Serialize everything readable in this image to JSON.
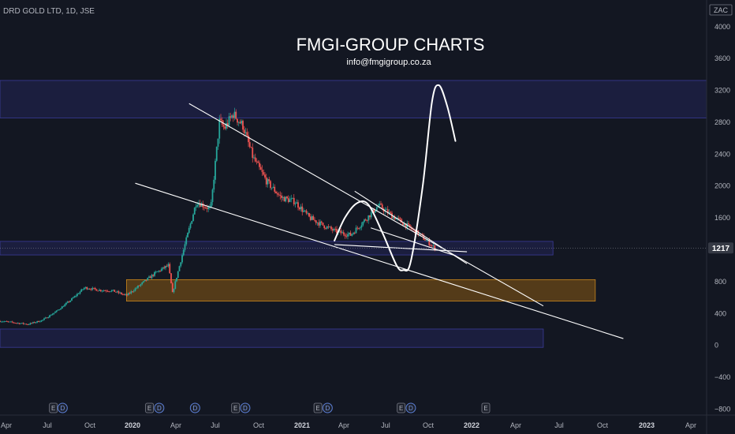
{
  "header": {
    "symbol": "DRD GOLD LTD, 1D, JSE",
    "currency": "ZAC"
  },
  "watermark": {
    "title": "FMGI-GROUP CHARTS",
    "email": "info@fmgigroup.co.za"
  },
  "last_price": "1217",
  "colors": {
    "background": "#131722",
    "up": "#26a69a",
    "down": "#ef5350",
    "zone_blue": "#2a2a72",
    "zone_orange": "#8a5a12",
    "line": "#ffffff",
    "price_badge": "#363a45"
  },
  "chart_data": {
    "type": "candlestick",
    "title": "",
    "x_ticks": [
      "Apr",
      "Jul",
      "Oct",
      "2020",
      "Apr",
      "Jul",
      "Oct",
      "2021",
      "Apr",
      "Jul",
      "Oct",
      "2022",
      "Apr",
      "Jul",
      "Oct",
      "2023",
      "Apr"
    ],
    "x_ticks_bold": [
      "2020",
      "2021",
      "2022",
      "2023"
    ],
    "y_ticks": [
      4000,
      3600,
      3200,
      2800,
      2400,
      2000,
      1600,
      1200,
      800,
      400,
      0,
      -400,
      -800
    ],
    "ylim": [
      -880,
      4330
    ],
    "xlim": [
      "2019-03-01",
      "2023-05-15"
    ],
    "grid": false,
    "price_path": [
      [
        "2019-03-01",
        300
      ],
      [
        "2019-04-01",
        280
      ],
      [
        "2019-05-01",
        260
      ],
      [
        "2019-06-01",
        310
      ],
      [
        "2019-07-01",
        420
      ],
      [
        "2019-08-01",
        560
      ],
      [
        "2019-09-01",
        720
      ],
      [
        "2019-10-01",
        690
      ],
      [
        "2019-11-01",
        680
      ],
      [
        "2019-12-01",
        620
      ],
      [
        "2020-01-01",
        760
      ],
      [
        "2020-02-01",
        900
      ],
      [
        "2020-03-01",
        1000
      ],
      [
        "2020-03-10",
        650
      ],
      [
        "2020-04-01",
        1150
      ],
      [
        "2020-05-01",
        1800
      ],
      [
        "2020-06-01",
        1700
      ],
      [
        "2020-06-20",
        2800
      ],
      [
        "2020-07-01",
        2720
      ],
      [
        "2020-07-20",
        2900
      ],
      [
        "2020-08-10",
        2750
      ],
      [
        "2020-09-01",
        2350
      ],
      [
        "2020-10-01",
        2050
      ],
      [
        "2020-11-01",
        1850
      ],
      [
        "2020-12-01",
        1800
      ],
      [
        "2021-01-01",
        1600
      ],
      [
        "2021-02-01",
        1500
      ],
      [
        "2021-03-01",
        1420
      ],
      [
        "2021-04-01",
        1380
      ],
      [
        "2021-05-01",
        1560
      ],
      [
        "2021-06-01",
        1750
      ],
      [
        "2021-07-01",
        1620
      ],
      [
        "2021-08-01",
        1500
      ],
      [
        "2021-09-01",
        1370
      ],
      [
        "2021-10-01",
        1217
      ]
    ],
    "zones": [
      {
        "label": "resistance",
        "y_low": 2850,
        "y_high": 3320,
        "x_start": "2019-03-01",
        "x_end": "2023-05-15",
        "color": "blue"
      },
      {
        "label": "current",
        "y_low": 1130,
        "y_high": 1300,
        "x_start": "2019-03-01",
        "x_end": "2022-06-15",
        "color": "blue"
      },
      {
        "label": "support",
        "y_low": 550,
        "y_high": 820,
        "x_start": "2019-12-01",
        "x_end": "2022-09-15",
        "color": "orange"
      },
      {
        "label": "lower",
        "y_low": -30,
        "y_high": 200,
        "x_start": "2019-03-01",
        "x_end": "2022-05-25",
        "color": "blue"
      }
    ],
    "trendlines": [
      {
        "from": [
          "2020-04-15",
          3030
        ],
        "to": [
          "2022-05-25",
          490
        ]
      },
      {
        "from": [
          "2019-12-20",
          2030
        ],
        "to": [
          "2022-11-15",
          80
        ]
      },
      {
        "from": [
          "2021-02-25",
          1260
        ],
        "to": [
          "2021-12-10",
          1170
        ]
      },
      {
        "from": [
          "2021-04-10",
          1930
        ],
        "to": [
          "2021-12-10",
          1020
        ]
      },
      {
        "from": [
          "2021-05-15",
          1470
        ],
        "to": [
          "2021-11-15",
          1120
        ]
      }
    ],
    "projection": [
      [
        "2021-02-25",
        1310
      ],
      [
        "2021-03-20",
        1600
      ],
      [
        "2021-04-15",
        1780
      ],
      [
        "2021-05-10",
        1760
      ],
      [
        "2021-06-10",
        1400
      ],
      [
        "2021-07-10",
        1000
      ],
      [
        "2021-07-25",
        940
      ],
      [
        "2021-08-10",
        1050
      ],
      [
        "2021-09-05",
        2000
      ],
      [
        "2021-09-25",
        3050
      ],
      [
        "2021-10-10",
        3260
      ],
      [
        "2021-10-28",
        3000
      ],
      [
        "2021-11-15",
        2560
      ]
    ],
    "events": [
      {
        "date": "2019-06-25",
        "type": "E"
      },
      {
        "date": "2019-07-15",
        "type": "D"
      },
      {
        "date": "2020-01-20",
        "type": "E"
      },
      {
        "date": "2020-02-10",
        "type": "D"
      },
      {
        "date": "2020-04-28",
        "type": "D"
      },
      {
        "date": "2020-07-25",
        "type": "E"
      },
      {
        "date": "2020-08-15",
        "type": "D"
      },
      {
        "date": "2021-01-20",
        "type": "E"
      },
      {
        "date": "2021-02-10",
        "type": "D"
      },
      {
        "date": "2021-07-20",
        "type": "E"
      },
      {
        "date": "2021-08-10",
        "type": "D"
      },
      {
        "date": "2022-01-20",
        "type": "E"
      }
    ]
  }
}
